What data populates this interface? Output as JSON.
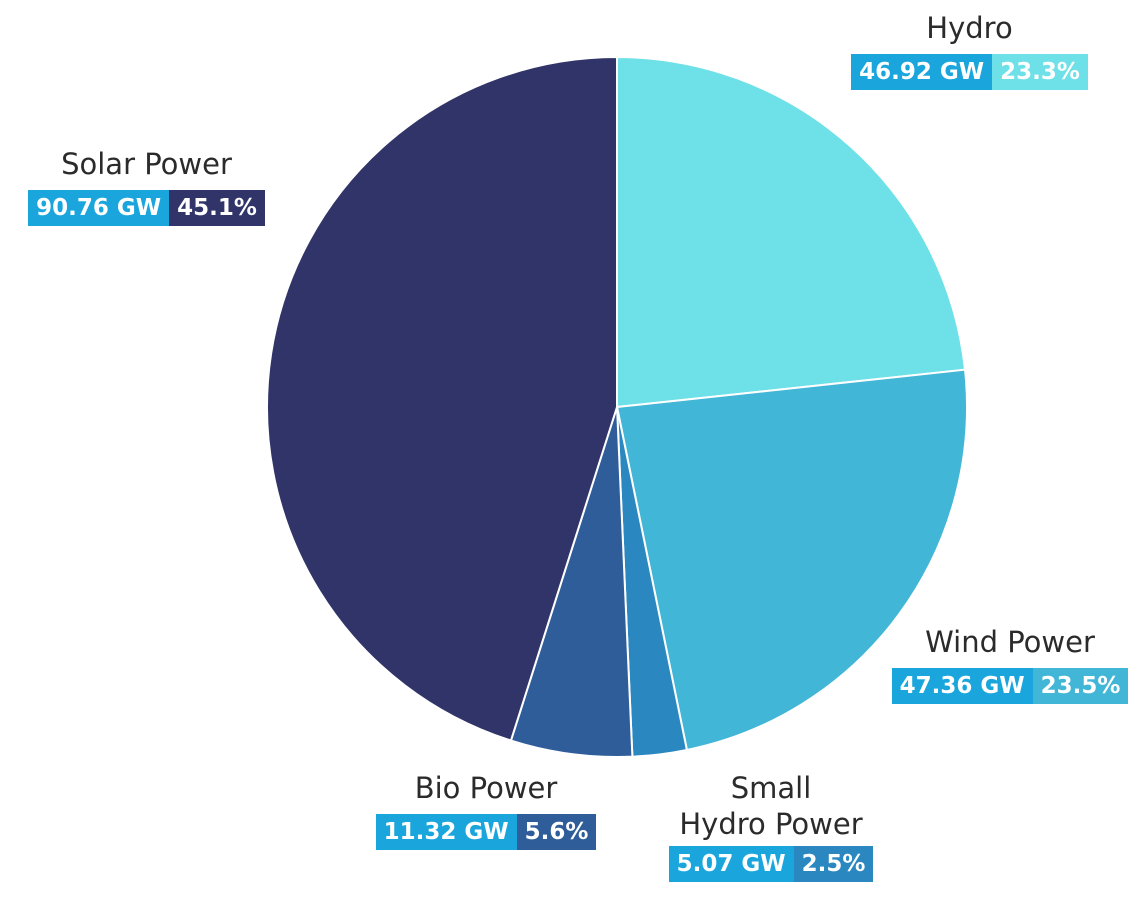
{
  "chart_data": {
    "type": "pie",
    "slices": [
      {
        "label": "Hydro",
        "value_text": "46.92 GW",
        "value": 46.92,
        "percent_text": "23.3%",
        "percent": 23.3,
        "color": "#6ee0e8",
        "value_badge_color": "#1aa6dd",
        "pct_badge_color": "#6ee0e8"
      },
      {
        "label": "Wind Power",
        "value_text": "47.36 GW",
        "value": 47.36,
        "percent_text": "23.5%",
        "percent": 23.5,
        "color": "#42b6d6",
        "value_badge_color": "#1aa6dd",
        "pct_badge_color": "#42b6d6"
      },
      {
        "label": "Small Hydro Power",
        "label_lines": [
          "Small",
          "Hydro Power"
        ],
        "value_text": "5.07 GW",
        "value": 5.07,
        "percent_text": "2.5%",
        "percent": 2.5,
        "color": "#2b87c0",
        "value_badge_color": "#1aa6dd",
        "pct_badge_color": "#2b87c0"
      },
      {
        "label": "Bio Power",
        "value_text": "11.32 GW",
        "value": 11.32,
        "percent_text": "5.6%",
        "percent": 5.6,
        "color": "#2e5d9a",
        "value_badge_color": "#1aa6dd",
        "pct_badge_color": "#2e5d9a"
      },
      {
        "label": "Solar Power",
        "value_text": "90.76 GW",
        "value": 90.76,
        "percent_text": "45.1%",
        "percent": 45.1,
        "color": "#303468",
        "value_badge_color": "#1aa6dd",
        "pct_badge_color": "#303468"
      }
    ],
    "start_angle_deg": 0,
    "direction": "clockwise",
    "legend": "none"
  }
}
